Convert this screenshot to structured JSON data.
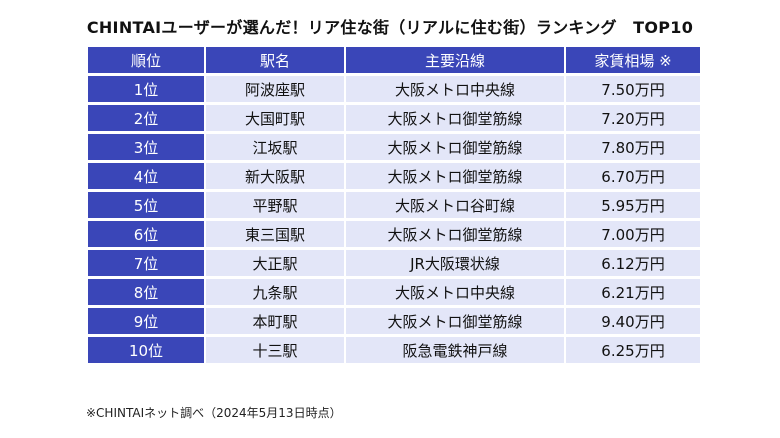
{
  "title": "CHINTAIユーザーが選んだ！リア住な街（リアルに住む街）ランキング　TOP10",
  "table": {
    "headers": {
      "rank": "順位",
      "station": "駅名",
      "line": "主要沿線",
      "rent": "家賃相場 ※"
    },
    "rows": [
      {
        "rank": "1位",
        "station": "阿波座駅",
        "line": "大阪メトロ中央線",
        "rent": "7.50万円"
      },
      {
        "rank": "2位",
        "station": "大国町駅",
        "line": "大阪メトロ御堂筋線",
        "rent": "7.20万円"
      },
      {
        "rank": "3位",
        "station": "江坂駅",
        "line": "大阪メトロ御堂筋線",
        "rent": "7.80万円"
      },
      {
        "rank": "4位",
        "station": "新大阪駅",
        "line": "大阪メトロ御堂筋線",
        "rent": "6.70万円"
      },
      {
        "rank": "5位",
        "station": "平野駅",
        "line": "大阪メトロ谷町線",
        "rent": "5.95万円"
      },
      {
        "rank": "6位",
        "station": "東三国駅",
        "line": "大阪メトロ御堂筋線",
        "rent": "7.00万円"
      },
      {
        "rank": "7位",
        "station": "大正駅",
        "line": "JR大阪環状線",
        "rent": "6.12万円"
      },
      {
        "rank": "8位",
        "station": "九条駅",
        "line": "大阪メトロ中央線",
        "rent": "6.21万円"
      },
      {
        "rank": "9位",
        "station": "本町駅",
        "line": "大阪メトロ御堂筋線",
        "rent": "9.40万円"
      },
      {
        "rank": "10位",
        "station": "十三駅",
        "line": "阪急電鉄神戸線",
        "rent": "6.25万円"
      }
    ]
  },
  "footnote": "※CHINTAIネット調べ（2024年5月13日時点）",
  "colors": {
    "header_bg": "#3a46b8",
    "cell_bg": "#e3e6f8"
  }
}
